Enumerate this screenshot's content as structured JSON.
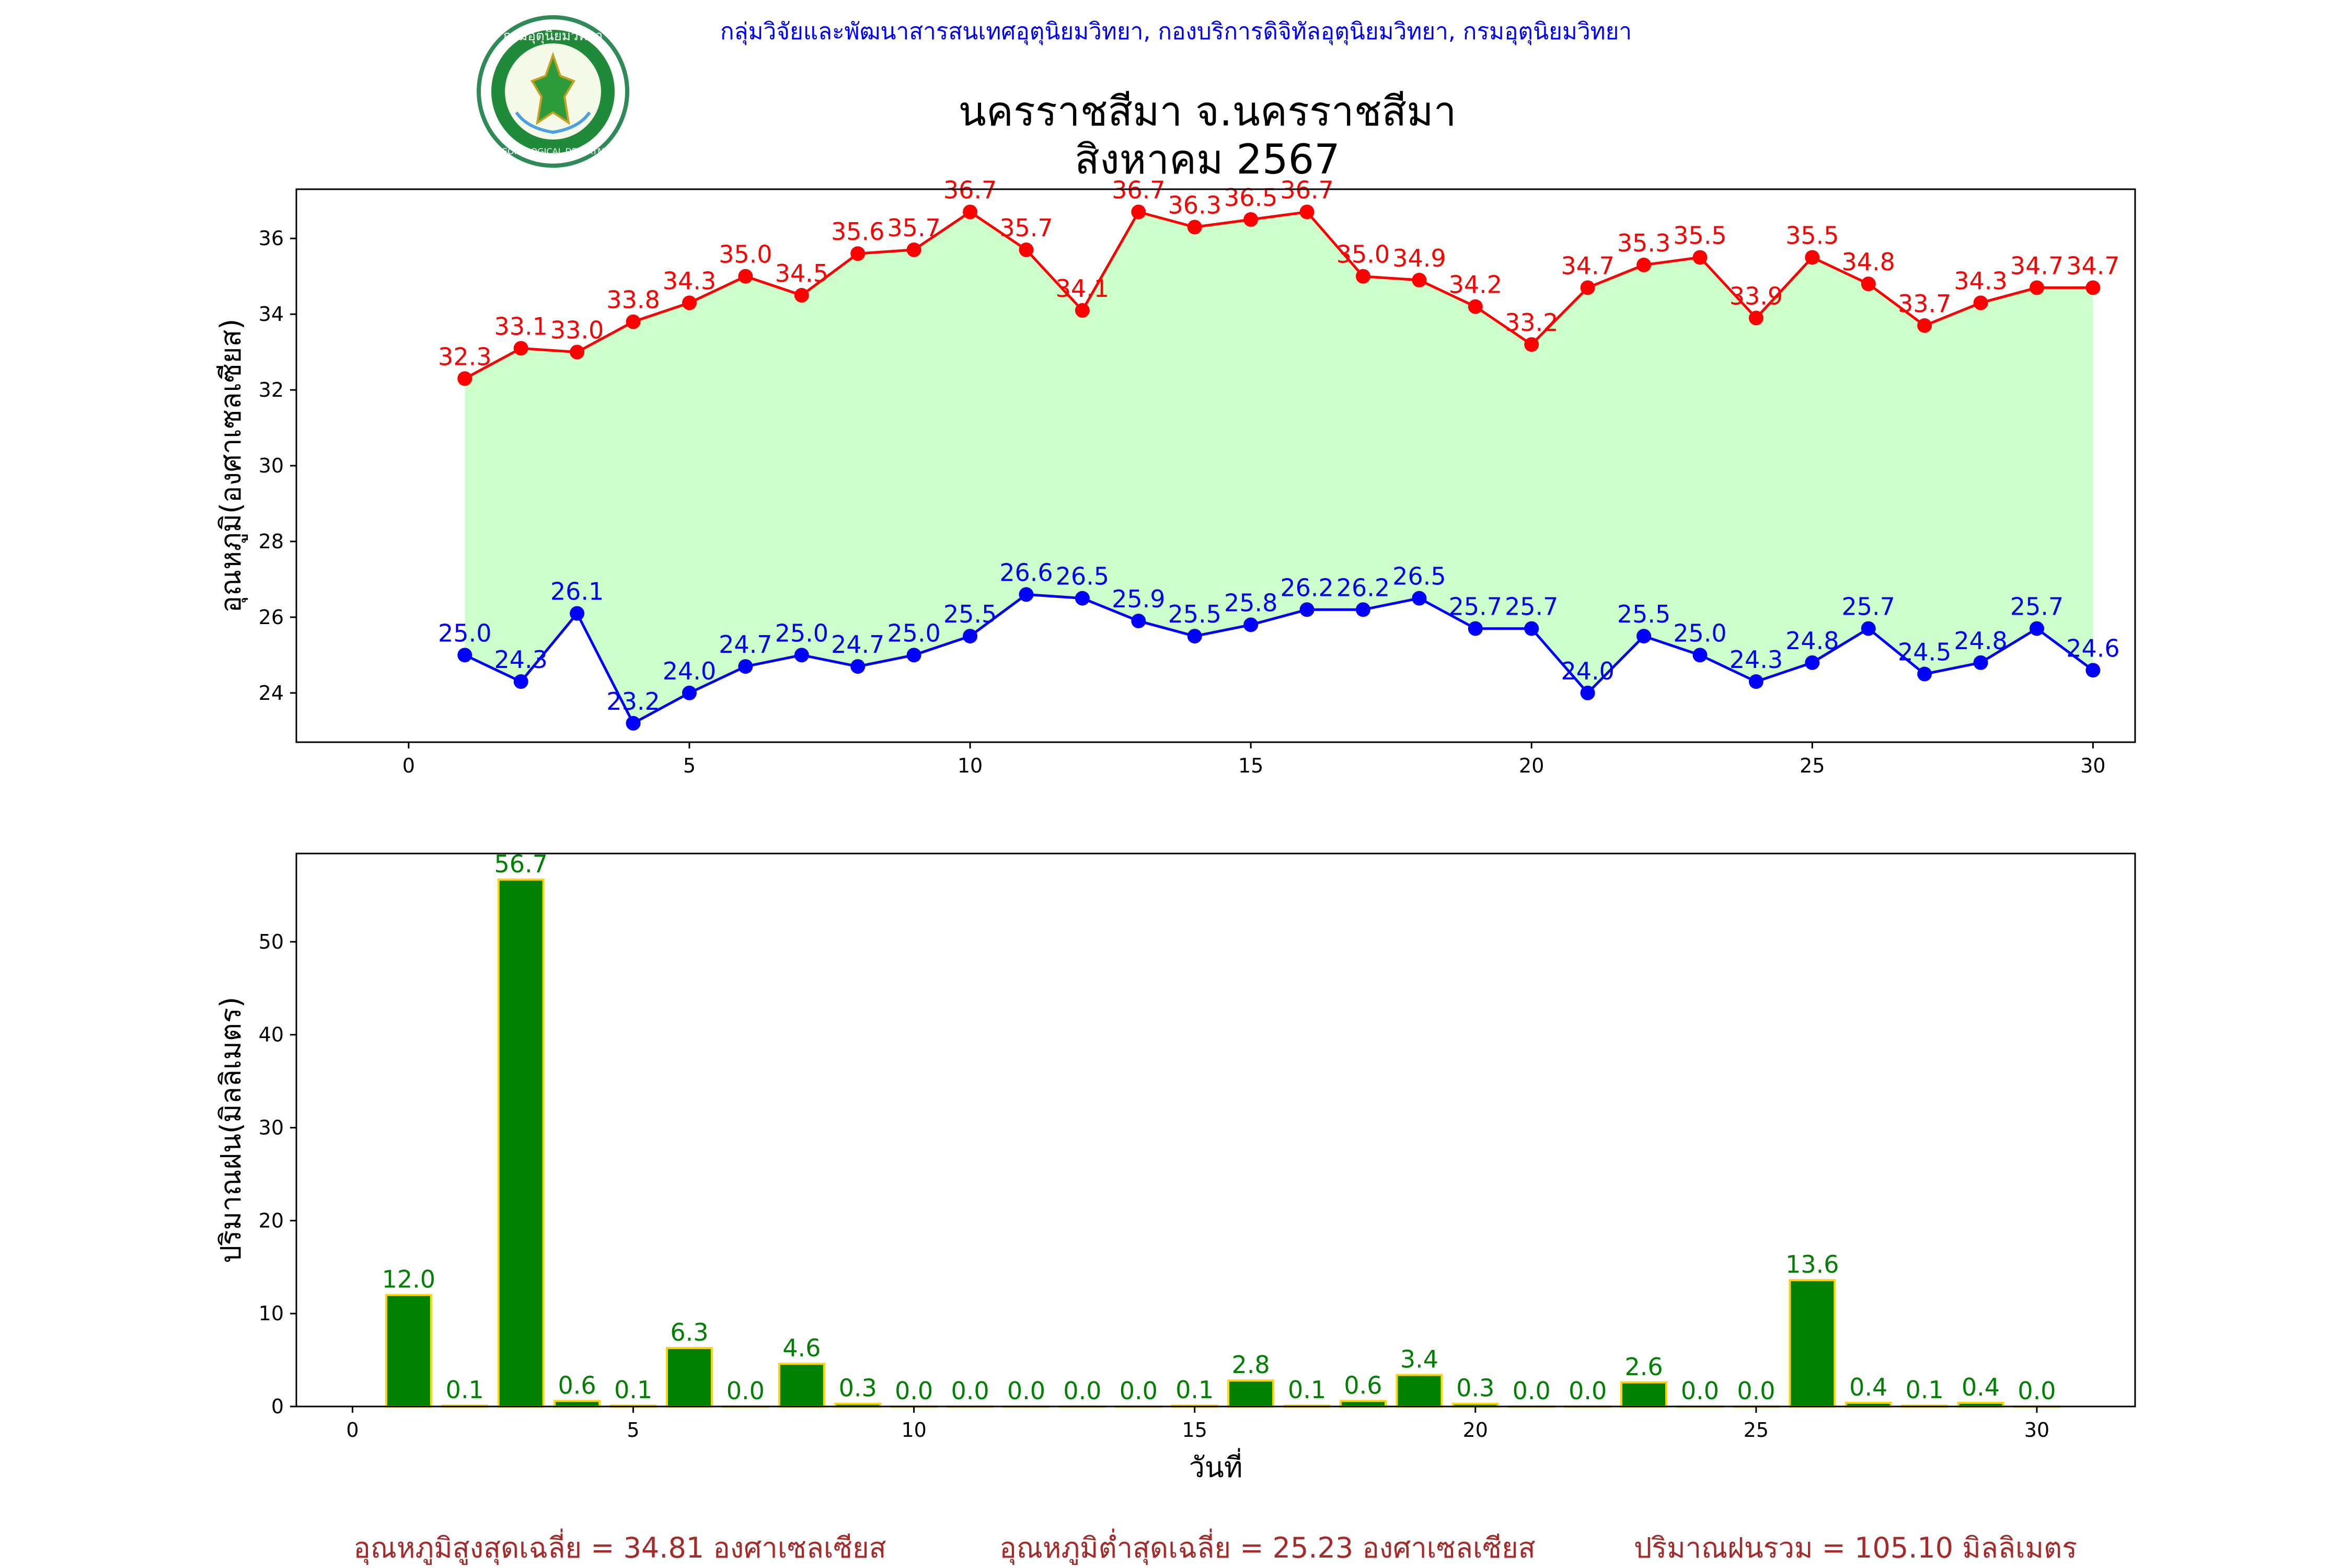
{
  "header": {
    "organization": "กลุ่มวิจัยและพัฒนาสารสนเทศอุตุนิยมวิทยา, กองบริการดิจิทัลอุตุนิยมวิทยา, กรมอุตุนิยมวิทยา",
    "logo_text_top": "กรมอุตุนิยมวิทยา",
    "logo_text_bottom": "METEOROLOGICAL DEPARTMENT",
    "title_line1": "นครราชสีมา จ.นครราชสีมา",
    "title_line2": "สิงหาคม 2567"
  },
  "colors": {
    "max": "#ff0000",
    "min": "#0000ff",
    "fill": "#ccffcc",
    "rain_bar": "#008000",
    "rain_edge": "#ffd700",
    "rain_label": "#008000",
    "summary": "#a52a2a",
    "org": "#0000ff"
  },
  "chart_data": [
    {
      "type": "line",
      "ylabel": "อุณหภูมิ(องศาเซลเซียส)",
      "xlabel": "",
      "xlim": [
        -2,
        30.75
      ],
      "ylim": [
        22.7,
        37.3
      ],
      "xticks": [
        0,
        5,
        10,
        15,
        20,
        25,
        30
      ],
      "yticks": [
        24,
        26,
        28,
        30,
        32,
        34,
        36
      ],
      "grid": false,
      "x": [
        1,
        2,
        3,
        4,
        5,
        6,
        7,
        8,
        9,
        10,
        11,
        12,
        13,
        14,
        15,
        16,
        17,
        18,
        19,
        20,
        21,
        22,
        23,
        24,
        25,
        26,
        27,
        28,
        29,
        30
      ],
      "series": [
        {
          "key": "max",
          "values": [
            32.3,
            33.1,
            33.0,
            33.8,
            34.3,
            35.0,
            34.5,
            35.6,
            35.7,
            36.7,
            35.7,
            34.1,
            36.7,
            36.3,
            36.5,
            36.7,
            35.0,
            34.9,
            34.2,
            33.2,
            34.7,
            35.3,
            35.5,
            33.9,
            35.5,
            34.8,
            33.7,
            34.3,
            34.7,
            34.7
          ]
        },
        {
          "key": "min",
          "values": [
            25.0,
            24.3,
            26.1,
            23.2,
            24.0,
            24.7,
            25.0,
            24.7,
            25.0,
            25.5,
            26.6,
            26.5,
            25.9,
            25.5,
            25.8,
            26.2,
            26.2,
            26.5,
            25.7,
            25.7,
            24.0,
            25.5,
            25.0,
            24.3,
            24.8,
            25.7,
            24.5,
            24.8,
            25.7,
            24.6
          ]
        }
      ]
    },
    {
      "type": "bar",
      "ylabel": "ปริมาณฝน(มิลลิเมตร)",
      "xlabel": "วันที่",
      "xlim": [
        -1,
        31.75
      ],
      "ylim": [
        0,
        59.5
      ],
      "xticks": [
        0,
        5,
        10,
        15,
        20,
        25,
        30
      ],
      "yticks": [
        0,
        10,
        20,
        30,
        40,
        50
      ],
      "grid": false,
      "x": [
        1,
        2,
        3,
        4,
        5,
        6,
        7,
        8,
        9,
        10,
        11,
        12,
        13,
        14,
        15,
        16,
        17,
        18,
        19,
        20,
        21,
        22,
        23,
        24,
        25,
        26,
        27,
        28,
        29,
        30
      ],
      "values": [
        12.0,
        0.1,
        56.7,
        0.6,
        0.1,
        6.3,
        0.0,
        4.6,
        0.3,
        0.0,
        0.0,
        0.0,
        0.0,
        0.0,
        0.1,
        2.8,
        0.1,
        0.6,
        3.4,
        0.3,
        0.0,
        0.0,
        2.6,
        0.0,
        0.0,
        13.6,
        0.4,
        0.1,
        0.4,
        0.0
      ]
    }
  ],
  "summary": {
    "avg_max": "อุณหภูมิสูงสุดเฉลี่ย = 34.81 องศาเซลเซียส",
    "avg_min": "อุณหภูมิต่ำสุดเฉลี่ย = 25.23 องศาเซลเซียส",
    "total_rain": "ปริมาณฝนรวม = 105.10 มิลลิเมตร"
  }
}
